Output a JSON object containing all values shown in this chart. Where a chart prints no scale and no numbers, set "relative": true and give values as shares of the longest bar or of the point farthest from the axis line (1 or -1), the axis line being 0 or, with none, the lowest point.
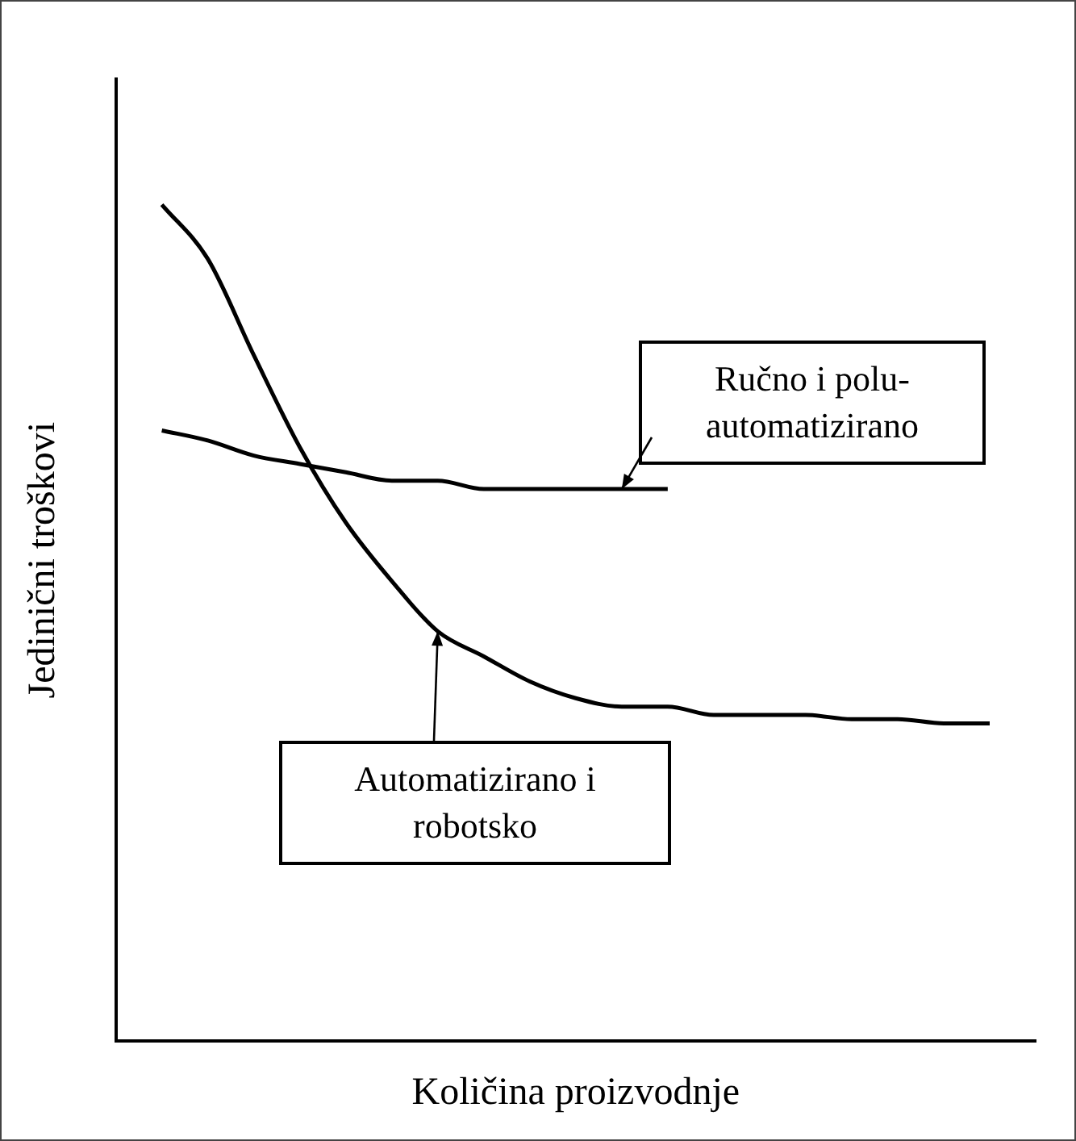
{
  "chart_data": {
    "type": "line",
    "relative": true,
    "xlabel": "Količina proizvodnje",
    "ylabel": "Jedinični troškovi",
    "categories": [
      null,
      null,
      null,
      null,
      null,
      null,
      null,
      null,
      null,
      null,
      null,
      null,
      null,
      null,
      null,
      null,
      null,
      null,
      null,
      null,
      null
    ],
    "series": [
      {
        "name": "Ručno i polu-automatizirano",
        "color": "#000000",
        "values": [
          null,
          0.73,
          0.718,
          0.7,
          0.69,
          0.68,
          0.67,
          0.67,
          0.66,
          0.66,
          0.66,
          0.66,
          0.66,
          null,
          null,
          null,
          null,
          null,
          null,
          null,
          null
        ]
      },
      {
        "name": "Automatizirano i robotsko",
        "color": "#000000",
        "values": [
          null,
          1.0,
          0.935,
          0.82,
          0.71,
          0.62,
          0.55,
          0.49,
          0.46,
          0.43,
          0.41,
          0.4,
          0.4,
          0.39,
          0.39,
          0.39,
          0.385,
          0.385,
          0.38,
          0.38,
          null
        ]
      }
    ],
    "legend": false,
    "tick_labels": false,
    "grid": false,
    "marker": "none",
    "line_style": "solid"
  }
}
